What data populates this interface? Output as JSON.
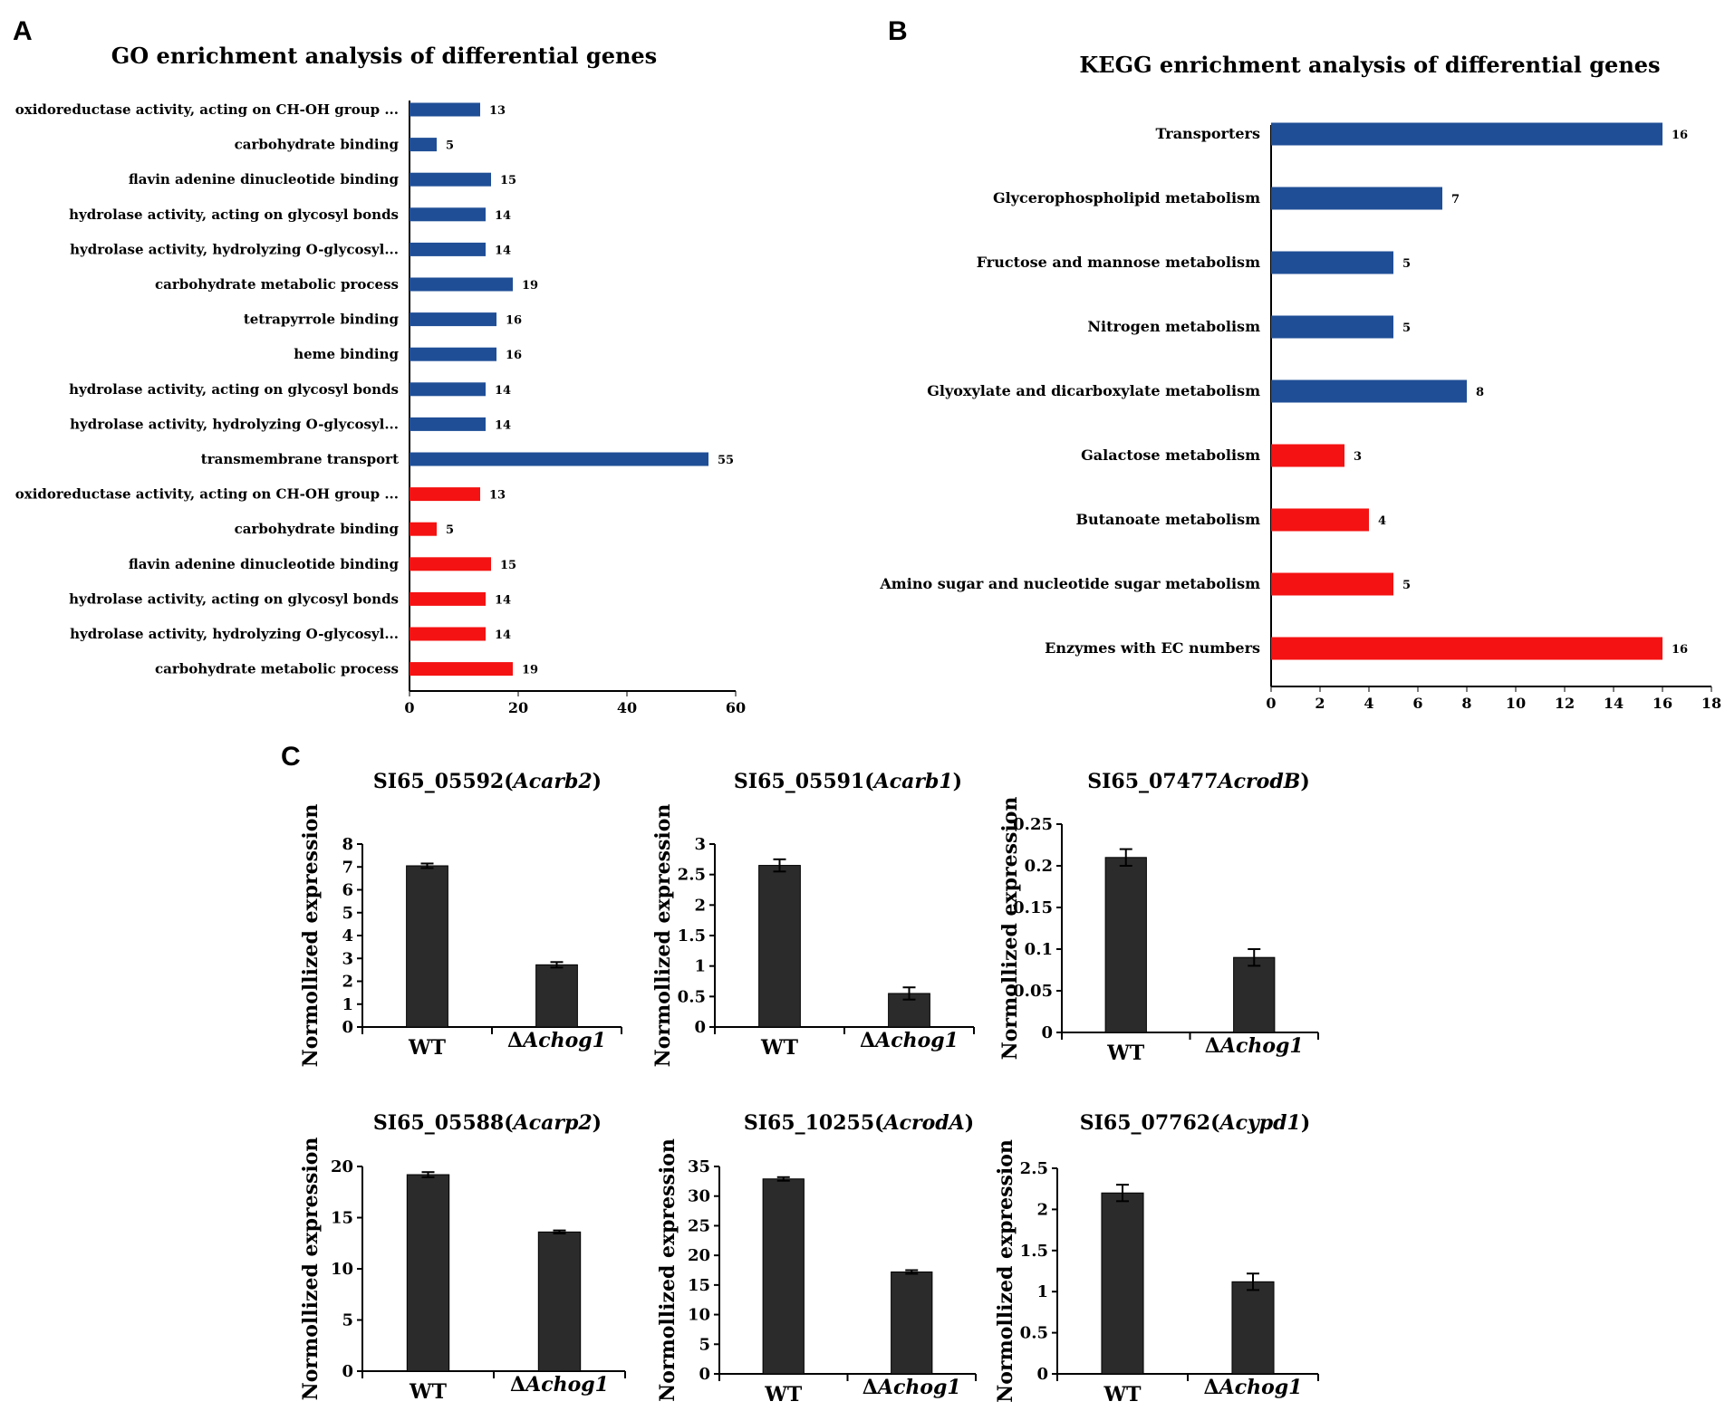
{
  "panels": {
    "a": "A",
    "b": "B",
    "c": "C"
  },
  "colors": {
    "blue": "#1f4e96",
    "red": "#f41212",
    "dark": "#2b2b2b"
  },
  "chart_data": [
    {
      "id": "go",
      "type": "bar",
      "orientation": "horizontal",
      "title": "GO enrichment analysis of differential genes",
      "categories": [
        "oxidoreductase activity, acting on CH-OH group ...",
        "carbohydrate binding",
        "flavin adenine dinucleotide binding",
        "hydrolase activity, acting on glycosyl bonds",
        "hydrolase activity, hydrolyzing O-glycosyl...",
        "carbohydrate metabolic process",
        "tetrapyrrole binding",
        "heme binding",
        "hydrolase activity, acting on glycosyl bonds",
        "hydrolase activity, hydrolyzing O-glycosyl...",
        "transmembrane transport",
        "oxidoreductase activity, acting on CH-OH group ...",
        "carbohydrate binding",
        "flavin adenine dinucleotide binding",
        "hydrolase activity, acting on glycosyl bonds",
        "hydrolase activity, hydrolyzing O-glycosyl...",
        "carbohydrate metabolic process"
      ],
      "values": [
        13,
        5,
        15,
        14,
        14,
        19,
        16,
        16,
        14,
        14,
        55,
        13,
        5,
        15,
        14,
        14,
        19
      ],
      "bar_colors": [
        "blue",
        "blue",
        "blue",
        "blue",
        "blue",
        "blue",
        "blue",
        "blue",
        "blue",
        "blue",
        "blue",
        "red",
        "red",
        "red",
        "red",
        "red",
        "red"
      ],
      "xlim": [
        0,
        60
      ],
      "xticks": [
        0,
        20,
        40,
        60
      ]
    },
    {
      "id": "kegg",
      "type": "bar",
      "orientation": "horizontal",
      "title": "KEGG enrichment analysis of differential genes",
      "categories": [
        "Transporters",
        "Glycerophospholipid metabolism",
        "Fructose and mannose metabolism",
        "Nitrogen metabolism",
        "Glyoxylate and dicarboxylate metabolism",
        "Galactose metabolism",
        "Butanoate metabolism",
        "Amino sugar and nucleotide sugar metabolism",
        "Enzymes with EC numbers"
      ],
      "values": [
        16,
        7,
        5,
        5,
        8,
        3,
        4,
        5,
        16
      ],
      "bar_colors": [
        "blue",
        "blue",
        "blue",
        "blue",
        "blue",
        "red",
        "red",
        "red",
        "red"
      ],
      "xlim": [
        0,
        18
      ],
      "xticks": [
        0,
        2,
        4,
        6,
        8,
        10,
        12,
        14,
        16,
        18
      ]
    },
    {
      "id": "c1",
      "type": "bar",
      "title_prefix": "SI65_05592(",
      "title_italic": "Acarb2",
      "title_suffix": ")",
      "ylabel": "Normollized expression",
      "cat_plain": [
        "WT",
        "Δ"
      ],
      "cat_italic": [
        "",
        "Achog1"
      ],
      "values": [
        7.05,
        2.72
      ],
      "errors": [
        0.1,
        0.12
      ],
      "ylim": [
        0,
        8
      ],
      "yticks": [
        "0",
        "1",
        "2",
        "3",
        "4",
        "5",
        "6",
        "7",
        "8"
      ]
    },
    {
      "id": "c2",
      "type": "bar",
      "title_prefix": "SI65_05591(",
      "title_italic": "Acarb1",
      "title_suffix": ")",
      "ylabel": "Normollized expression",
      "cat_plain": [
        "WT",
        "Δ"
      ],
      "cat_italic": [
        "",
        "Achog1"
      ],
      "values": [
        2.65,
        0.55
      ],
      "errors": [
        0.1,
        0.1
      ],
      "ylim": [
        0,
        3
      ],
      "yticks": [
        "0",
        "0.5",
        "1",
        "1.5",
        "2",
        "2.5",
        "3"
      ]
    },
    {
      "id": "c3",
      "type": "bar",
      "title_prefix": "SI65_07477",
      "title_italic": "AcrodB",
      "title_suffix": ")",
      "ylabel": "Normollized expression",
      "cat_plain": [
        "WT",
        "Δ"
      ],
      "cat_italic": [
        "",
        "Achog1"
      ],
      "values": [
        0.21,
        0.09
      ],
      "errors": [
        0.01,
        0.01
      ],
      "ylim": [
        0,
        0.25
      ],
      "yticks": [
        "0",
        "0.05",
        "0.1",
        "0.15",
        "0.2",
        "0.25"
      ]
    },
    {
      "id": "c4",
      "type": "bar",
      "title_prefix": "SI65_05588(",
      "title_italic": "Acarp2",
      "title_suffix": ")",
      "ylabel": "Normollized expression",
      "cat_plain": [
        "WT",
        "Δ"
      ],
      "cat_italic": [
        "",
        "Achog1"
      ],
      "values": [
        19.2,
        13.6
      ],
      "errors": [
        0.25,
        0.15
      ],
      "ylim": [
        0,
        20
      ],
      "yticks": [
        "0",
        "5",
        "10",
        "15",
        "20"
      ]
    },
    {
      "id": "c5",
      "type": "bar",
      "title_prefix": "SI65_10255(",
      "title_italic": "AcrodA",
      "title_suffix": ")",
      "ylabel": "Normollized expression",
      "cat_plain": [
        "WT",
        "Δ"
      ],
      "cat_italic": [
        "",
        "Achog1"
      ],
      "values": [
        32.9,
        17.2
      ],
      "errors": [
        0.3,
        0.3
      ],
      "ylim": [
        0,
        35
      ],
      "yticks": [
        "0",
        "5",
        "10",
        "15",
        "20",
        "25",
        "30",
        "35"
      ]
    },
    {
      "id": "c6",
      "type": "bar",
      "title_prefix": "SI65_07762(",
      "title_italic": "Acypd1",
      "title_suffix": ")",
      "ylabel": "Normollized expression",
      "cat_plain": [
        "WT",
        "Δ"
      ],
      "cat_italic": [
        "",
        "Achog1"
      ],
      "values": [
        2.2,
        1.12
      ],
      "errors": [
        0.1,
        0.1
      ],
      "ylim": [
        0,
        2.5
      ],
      "yticks": [
        "0",
        "0.5",
        "1",
        "1.5",
        "2",
        "2.5"
      ]
    }
  ]
}
